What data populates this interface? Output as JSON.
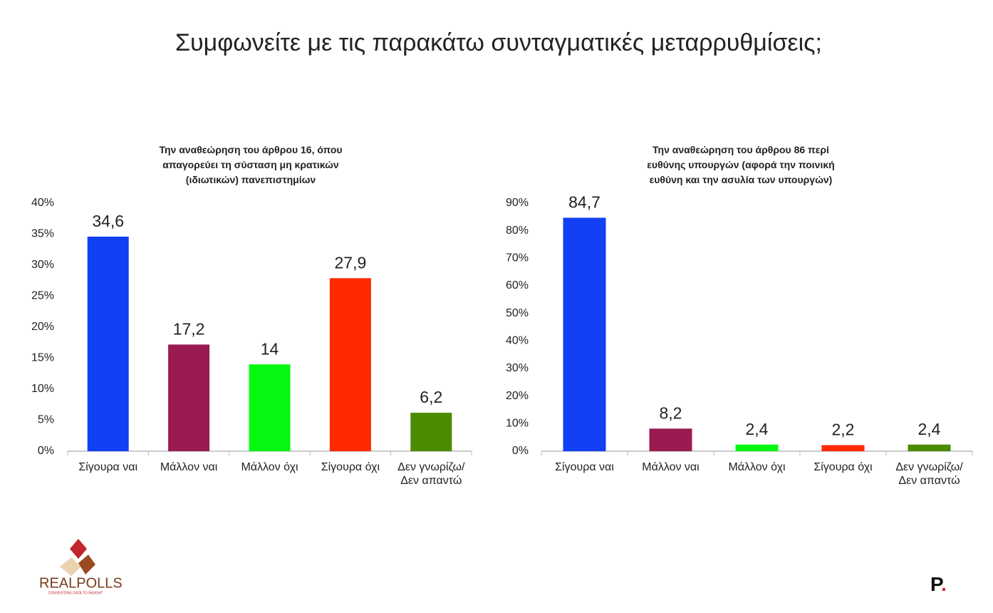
{
  "page_title": "Συμφωνείτε με τις παρακάτω συνταγματικές μεταρρυθμίσεις;",
  "logo_text": "REALPOLLS",
  "logo_tagline": "CONVERTING DATA TO INSIGHT",
  "logo_p": "P.",
  "chart_data": [
    {
      "type": "bar",
      "title": "Την αναθεώρηση του άρθρου 16, όπου\nαπαγορεύει τη σύσταση μη κρατικών\n(ιδιωτικών) πανεπιστημίων",
      "categories": [
        "Σίγουρα ναι",
        "Μάλλον ναι",
        "Μάλλον όχι",
        "Σίγουρα όχι",
        "Δεν γνωρίζω/\nΔεν απαντώ"
      ],
      "values": [
        34.6,
        17.2,
        14,
        27.9,
        6.2
      ],
      "value_labels": [
        "34,6",
        "17,2",
        "14",
        "27,9",
        "6,2"
      ],
      "colors": [
        "#1140f5",
        "#9a1a52",
        "#05f910",
        "#ff2a00",
        "#4a8b00"
      ],
      "ylim": [
        0,
        40
      ],
      "yticks": [
        {
          "value": 0,
          "label": "0%"
        },
        {
          "value": 5,
          "label": "5%"
        },
        {
          "value": 10,
          "label": "10%"
        },
        {
          "value": 15,
          "label": "15%"
        },
        {
          "value": 20,
          "label": "20%"
        },
        {
          "value": 25,
          "label": "25%"
        },
        {
          "value": 30,
          "label": "30%"
        },
        {
          "value": 35,
          "label": "35%"
        },
        {
          "value": 40,
          "label": "40%"
        }
      ],
      "grid": false
    },
    {
      "type": "bar",
      "title": "Την αναθεώρηση του άρθρου 86 περί\nευθύνης υπουργών (αφορά την ποινική\nευθύνη και την ασυλία των υπουργών)",
      "categories": [
        "Σίγουρα ναι",
        "Μάλλον ναι",
        "Μάλλον όχι",
        "Σίγουρα όχι",
        "Δεν γνωρίζω/\nΔεν απαντώ"
      ],
      "values": [
        84.7,
        8.2,
        2.4,
        2.2,
        2.4
      ],
      "value_labels": [
        "84,7",
        "8,2",
        "2,4",
        "2,2",
        "2,4"
      ],
      "colors": [
        "#1140f5",
        "#9a1a52",
        "#05f910",
        "#ff2a00",
        "#4a8b00"
      ],
      "ylim": [
        0,
        90
      ],
      "yticks": [
        {
          "value": 0,
          "label": "0%"
        },
        {
          "value": 10,
          "label": "10%"
        },
        {
          "value": 20,
          "label": "20%"
        },
        {
          "value": 30,
          "label": "30%"
        },
        {
          "value": 40,
          "label": "40%"
        },
        {
          "value": 50,
          "label": "50%"
        },
        {
          "value": 60,
          "label": "60%"
        },
        {
          "value": 70,
          "label": "70%"
        },
        {
          "value": 80,
          "label": "80%"
        },
        {
          "value": 90,
          "label": "90%"
        }
      ],
      "grid": false
    }
  ]
}
